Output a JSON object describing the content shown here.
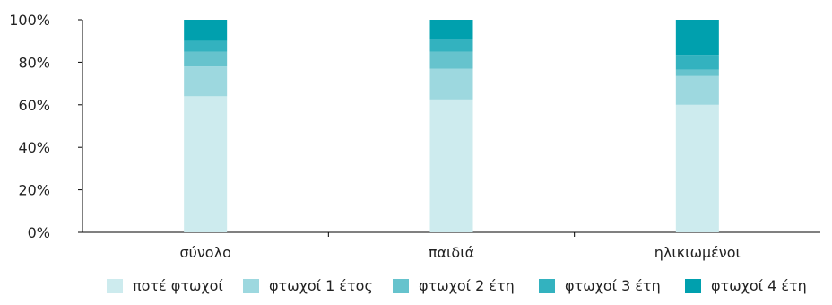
{
  "chart_data": {
    "type": "bar",
    "stacked": true,
    "percent": true,
    "title": "",
    "xlabel": "",
    "ylabel": "",
    "ylim": [
      0,
      100
    ],
    "y_ticks": [
      "0%",
      "20%",
      "40%",
      "60%",
      "80%",
      "100%"
    ],
    "categories": [
      "σύνολο",
      "παιδιά",
      "ηλικιωμένοι"
    ],
    "series": [
      {
        "name": "ποτέ φτωχοί",
        "color": "#cdebee",
        "values": [
          64,
          62.5,
          60
        ]
      },
      {
        "name": "φτωχοί 1 έτος",
        "color": "#9dd8df",
        "values": [
          14,
          14.5,
          13.5
        ]
      },
      {
        "name": "φτωχοί 2 έτη",
        "color": "#66c3cd",
        "values": [
          7,
          8,
          3
        ]
      },
      {
        "name": "φτωχοί 3 έτη",
        "color": "#33b2bf",
        "values": [
          5,
          6,
          7
        ]
      },
      {
        "name": "φτωχοί 4 έτη",
        "color": "#00a0ae",
        "values": [
          10,
          9,
          16.5
        ]
      }
    ],
    "legend_position": "bottom",
    "grid": false
  }
}
